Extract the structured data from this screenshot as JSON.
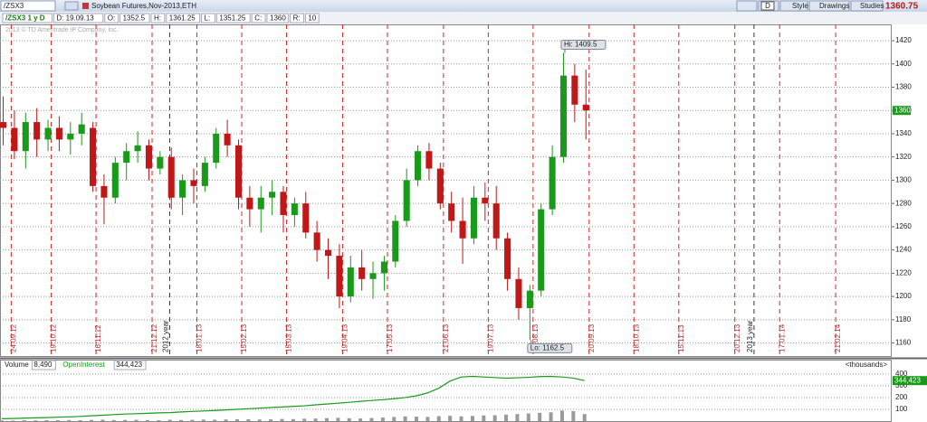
{
  "ui": {
    "symbol": "/ZSX3",
    "description": "Soybean Futures,Nov-2013,ETH",
    "buttons": [
      "D",
      "Style",
      "Drawings",
      "Studies"
    ],
    "last_price": "1360.75"
  },
  "info_bar": [
    "/ZSX3 1 y D",
    "D: 19.09.13",
    "O:",
    "1352.5",
    "H:",
    "1361.25",
    "L:",
    "1351.25",
    "C:",
    "1360",
    "R:",
    "10"
  ],
  "chart_data": [
    {
      "type": "candlestick",
      "watermark": "2013 © TD Ameritrade IP Company, Inc.",
      "up_color": "#1a9a1a",
      "down_color": "#c01818",
      "grid": true,
      "x": [
        "2012-09-17",
        "2012-09-24",
        "2012-10-01",
        "2012-10-08",
        "2012-10-15",
        "2012-10-22",
        "2012-10-29",
        "2012-11-05",
        "2012-11-12",
        "2012-11-19",
        "2012-11-26",
        "2012-12-03",
        "2012-12-10",
        "2012-12-17",
        "2012-12-24",
        "2012-12-31",
        "2013-01-07",
        "2013-01-14",
        "2013-01-21",
        "2013-01-28",
        "2013-02-04",
        "2013-02-11",
        "2013-02-18",
        "2013-02-25",
        "2013-03-04",
        "2013-03-11",
        "2013-03-18",
        "2013-03-25",
        "2013-04-01",
        "2013-04-08",
        "2013-04-15",
        "2013-04-22",
        "2013-04-29",
        "2013-05-06",
        "2013-05-13",
        "2013-05-20",
        "2013-05-27",
        "2013-06-03",
        "2013-06-10",
        "2013-06-17",
        "2013-06-24",
        "2013-07-01",
        "2013-07-08",
        "2013-07-15",
        "2013-07-22",
        "2013-07-29",
        "2013-08-05",
        "2013-08-12",
        "2013-08-19",
        "2013-08-26",
        "2013-09-02",
        "2013-09-09",
        "2013-09-16"
      ],
      "open": [
        1350,
        1345,
        1325,
        1350,
        1335,
        1345,
        1335,
        1340,
        1345,
        1295,
        1285,
        1315,
        1325,
        1330,
        1310,
        1320,
        1285,
        1300,
        1295,
        1315,
        1340,
        1330,
        1285,
        1275,
        1285,
        1290,
        1270,
        1280,
        1255,
        1240,
        1235,
        1200,
        1225,
        1215,
        1220,
        1230,
        1265,
        1300,
        1325,
        1310,
        1280,
        1265,
        1250,
        1285,
        1280,
        1250,
        1215,
        1190,
        1205,
        1275,
        1320,
        1390,
        1365
      ],
      "high": [
        1372,
        1360,
        1358,
        1362,
        1352,
        1355,
        1350,
        1358,
        1350,
        1305,
        1320,
        1332,
        1342,
        1335,
        1325,
        1328,
        1305,
        1310,
        1320,
        1345,
        1352,
        1335,
        1295,
        1295,
        1300,
        1295,
        1285,
        1290,
        1265,
        1250,
        1245,
        1235,
        1240,
        1230,
        1235,
        1270,
        1310,
        1330,
        1332,
        1315,
        1290,
        1285,
        1295,
        1298,
        1295,
        1255,
        1225,
        1210,
        1280,
        1330,
        1409.5,
        1400,
        1395
      ],
      "low": [
        1330,
        1318,
        1310,
        1320,
        1325,
        1325,
        1322,
        1330,
        1290,
        1262,
        1280,
        1300,
        1315,
        1300,
        1305,
        1275,
        1270,
        1280,
        1290,
        1310,
        1320,
        1275,
        1260,
        1255,
        1270,
        1255,
        1260,
        1250,
        1230,
        1215,
        1190,
        1195,
        1205,
        1198,
        1205,
        1225,
        1260,
        1295,
        1300,
        1275,
        1255,
        1228,
        1245,
        1265,
        1240,
        1205,
        1180,
        1162.5,
        1200,
        1270,
        1315,
        1350,
        1335
      ],
      "close": [
        1345,
        1325,
        1350,
        1335,
        1345,
        1335,
        1340,
        1348,
        1295,
        1285,
        1315,
        1325,
        1330,
        1310,
        1320,
        1285,
        1300,
        1295,
        1315,
        1340,
        1330,
        1285,
        1275,
        1285,
        1290,
        1270,
        1280,
        1255,
        1240,
        1235,
        1200,
        1225,
        1215,
        1220,
        1230,
        1265,
        1300,
        1325,
        1310,
        1280,
        1265,
        1250,
        1285,
        1280,
        1250,
        1215,
        1190,
        1205,
        1275,
        1320,
        1390,
        1365,
        1360
      ],
      "xlim": [
        "2012-09-17",
        "2014-03-28"
      ],
      "xticks": [
        {
          "value": "2012-09-24",
          "label": "24.09.12"
        },
        {
          "value": "2012-10-19",
          "label": "19.10.12"
        },
        {
          "value": "2012-11-16",
          "label": "16.11.12"
        },
        {
          "value": "2012-12-21",
          "label": "21.12.12"
        },
        {
          "value": "2013-01-18",
          "label": "18.01.13"
        },
        {
          "value": "2013-02-15",
          "label": "15.02.13"
        },
        {
          "value": "2013-03-15",
          "label": "15.03.13"
        },
        {
          "value": "2013-04-19",
          "label": "19.04.13"
        },
        {
          "value": "2013-05-17",
          "label": "17.05.13"
        },
        {
          "value": "2013-06-21",
          "label": "21.06.13"
        },
        {
          "value": "2013-07-19",
          "label": "19.07.13"
        },
        {
          "value": "2013-08-16",
          "label": "16.08.13"
        },
        {
          "value": "2013-09-20",
          "label": "20.09.13"
        },
        {
          "value": "2013-10-18",
          "label": "18.10.13"
        },
        {
          "value": "2013-11-15",
          "label": "15.11.13"
        },
        {
          "value": "2013-12-20",
          "label": "20.12.13"
        },
        {
          "value": "2014-01-17",
          "label": "17.01.14"
        },
        {
          "value": "2014-02-21",
          "label": "21.02.14"
        }
      ],
      "year_marks": [
        {
          "value": "2013-01-01",
          "label": "2012 year"
        },
        {
          "value": "2014-01-01",
          "label": "2013 year"
        }
      ],
      "ylim": [
        1148,
        1434
      ],
      "yticks": [
        1160,
        1180,
        1200,
        1220,
        1240,
        1260,
        1280,
        1300,
        1320,
        1340,
        1360,
        1380,
        1400,
        1420
      ],
      "annotations": [
        {
          "text": "Hi: 1409.5",
          "x": "2013-09-02",
          "y": 1409.5
        },
        {
          "text": "Lo: 1162.5",
          "x": "2013-08-12",
          "y": 1162.5
        }
      ],
      "price_tag": 1360
    },
    {
      "type": "volume",
      "unit_label": "<thousands>",
      "series": [
        {
          "name": "Volume",
          "color": "#9a9a9a",
          "value_label": "8,490",
          "values": [
            6,
            5,
            7,
            6,
            8,
            7,
            9,
            8,
            10,
            12,
            9,
            10,
            11,
            9,
            8,
            12,
            10,
            11,
            13,
            12,
            14,
            16,
            15,
            14,
            16,
            18,
            17,
            20,
            22,
            25,
            28,
            24,
            22,
            26,
            30,
            35,
            40,
            38,
            36,
            42,
            45,
            40,
            44,
            48,
            50,
            55,
            60,
            65,
            70,
            75,
            90,
            85,
            60
          ]
        },
        {
          "name": "OpenInterest",
          "color": "#1a9a1a",
          "value_label": "344,423",
          "values": [
            20,
            22,
            25,
            28,
            30,
            33,
            36,
            40,
            45,
            50,
            55,
            60,
            63,
            66,
            70,
            72,
            78,
            82,
            86,
            90,
            95,
            100,
            105,
            110,
            115,
            120,
            125,
            130,
            138,
            145,
            152,
            160,
            168,
            175,
            182,
            190,
            200,
            215,
            240,
            280,
            340,
            375,
            380,
            375,
            370,
            365,
            368,
            372,
            378,
            380,
            375,
            365,
            344
          ]
        }
      ],
      "ylim": [
        0,
        430
      ],
      "yticks": [
        100,
        200,
        300,
        400
      ]
    }
  ]
}
